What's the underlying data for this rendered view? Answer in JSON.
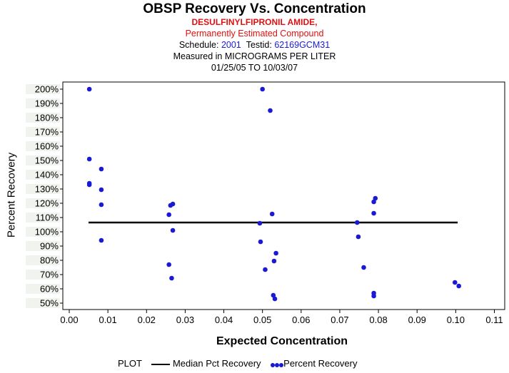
{
  "chart_data": {
    "type": "scatter",
    "title": "OBSP Recovery Vs. Concentration",
    "compound": "DESULFINYLFIPRONIL AMIDE,",
    "estimated_note": "Permanently Estimated Compound",
    "schedule_label": "Schedule:",
    "schedule": "2001",
    "testid_label": "Testid:",
    "testid": "62169GCM31",
    "measured_in": "Measured in  MICROGRAMS PER LITER",
    "date_range": "01/25/05 TO 10/03/07",
    "xlabel": "Expected Concentration",
    "ylabel": "Percent Recovery",
    "xlim": [
      0,
      0.11
    ],
    "ylim": [
      45,
      205
    ],
    "x_ticks": [
      "0.00",
      "0.01",
      "0.02",
      "0.03",
      "0.04",
      "0.05",
      "0.06",
      "0.07",
      "0.08",
      "0.09",
      "0.10",
      "0.11"
    ],
    "y_ticks": [
      "50%",
      "60%",
      "70%",
      "80%",
      "90%",
      "100%",
      "110%",
      "120%",
      "130%",
      "140%",
      "150%",
      "160%",
      "170%",
      "180%",
      "190%",
      "200%"
    ],
    "median_line": {
      "name": "Median Pct Recovery",
      "y": 106.5,
      "x_start": 0.005,
      "x_end": 0.1005
    },
    "series": [
      {
        "name": "Percent Recovery",
        "color": "#1a1ad6",
        "points": [
          [
            0.0052,
            200
          ],
          [
            0.0052,
            151
          ],
          [
            0.0052,
            134
          ],
          [
            0.0052,
            133
          ],
          [
            0.0083,
            144
          ],
          [
            0.0083,
            129.5
          ],
          [
            0.0083,
            119
          ],
          [
            0.0083,
            94
          ],
          [
            0.0258,
            112
          ],
          [
            0.0262,
            118.5
          ],
          [
            0.0268,
            119.5
          ],
          [
            0.0268,
            101
          ],
          [
            0.0258,
            77
          ],
          [
            0.0265,
            67.5
          ],
          [
            0.05,
            200
          ],
          [
            0.052,
            185
          ],
          [
            0.0525,
            112.5
          ],
          [
            0.0493,
            106
          ],
          [
            0.0495,
            93
          ],
          [
            0.0535,
            85
          ],
          [
            0.053,
            79.5
          ],
          [
            0.0507,
            73.5
          ],
          [
            0.0528,
            55.5
          ],
          [
            0.0532,
            53
          ],
          [
            0.0745,
            106.5
          ],
          [
            0.0748,
            96.5
          ],
          [
            0.0762,
            75
          ],
          [
            0.0792,
            123.5
          ],
          [
            0.0788,
            121
          ],
          [
            0.0788,
            113
          ],
          [
            0.0788,
            57
          ],
          [
            0.0788,
            55
          ],
          [
            0.0998,
            64.5
          ],
          [
            0.1008,
            62
          ]
        ]
      }
    ]
  },
  "legend": {
    "label": "PLOT",
    "median": "Median Pct Recovery",
    "points": "Percent Recovery"
  }
}
